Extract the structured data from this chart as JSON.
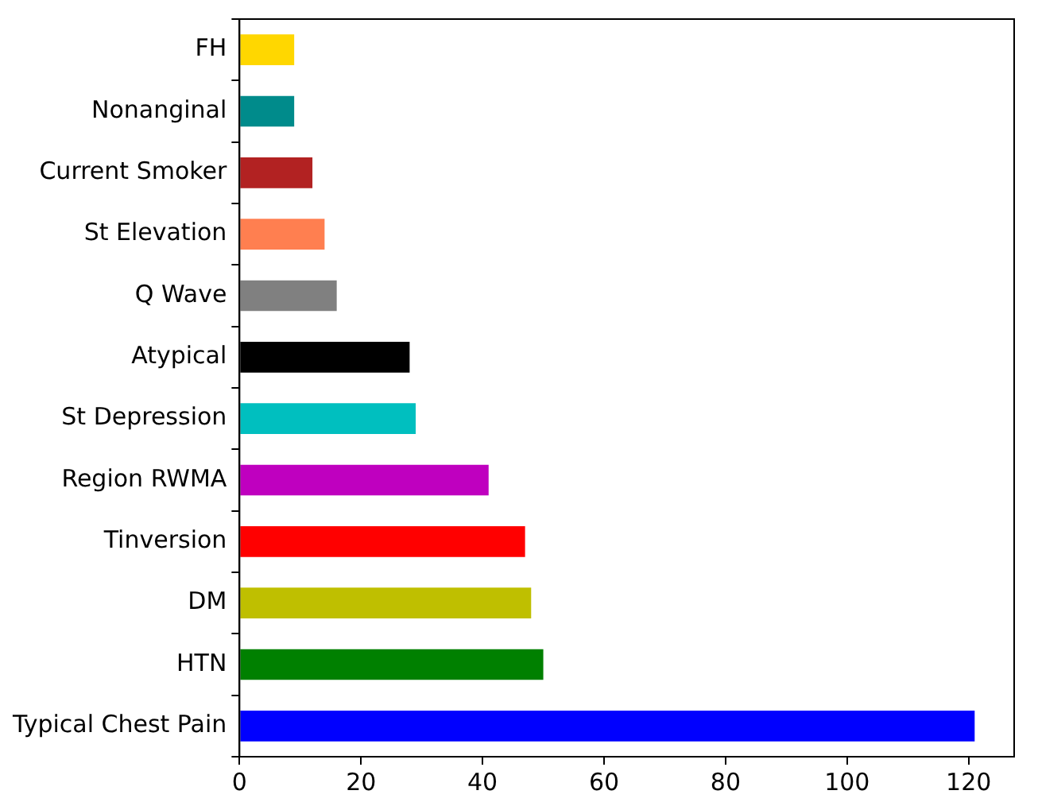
{
  "chart_data": {
    "type": "bar",
    "orientation": "horizontal",
    "categories": [
      "FH",
      "Nonanginal",
      "Current Smoker",
      "St Elevation",
      "Q Wave",
      "Atypical",
      "St Depression",
      "Region RWMA",
      "Tinversion",
      "DM",
      "HTN",
      "Typical Chest Pain"
    ],
    "values": [
      9,
      9,
      12,
      14,
      16,
      28,
      29,
      41,
      47,
      48,
      50,
      121
    ],
    "colors": [
      "#ffd700",
      "#008b8b",
      "#b22222",
      "#ff7f50",
      "#808080",
      "#000000",
      "#00bfbf",
      "#bf00bf",
      "#ff0000",
      "#bfbf00",
      "#008000",
      "#0000ff"
    ],
    "xlim": [
      0,
      127.5
    ],
    "xticks": [
      0,
      20,
      40,
      60,
      80,
      100,
      120
    ],
    "grid": false,
    "legend": false
  }
}
